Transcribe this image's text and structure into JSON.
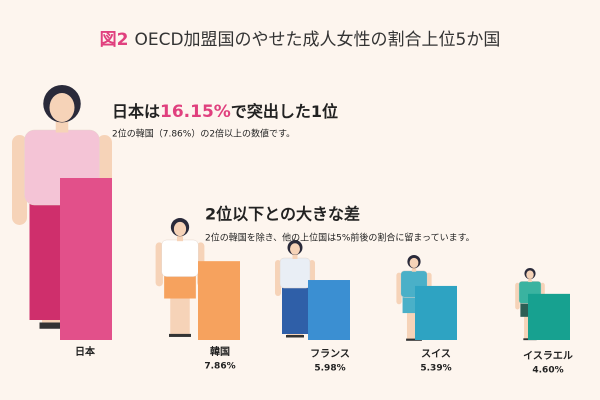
{
  "chart_data": {
    "type": "bar",
    "figure_label": "図2",
    "title": "OECD加盟国のやせた成人女性の割合上位5か国",
    "headline": [
      "日本は",
      "で突出した1位"
    ],
    "headline_note": "2位の韓国（7.86%）の2倍以上の数値です。",
    "subheadline": "2位以下との大きな差",
    "subheadline_note": "2位の韓国を除き、他の上位国は5%前後の割合に留まっています。",
    "categories": [
      "日本",
      "韓国",
      "フランス",
      "スイス",
      "イスラエル"
    ],
    "values": [
      16.15,
      7.86,
      5.98,
      5.39,
      4.6
    ],
    "value_labels": [
      "16.15%",
      "7.86%",
      "5.98%",
      "5.39%",
      "4.60%"
    ],
    "colors": [
      "#e2508a",
      "#f6a25e",
      "#3b8fd2",
      "#2ea3c2",
      "#17a190"
    ]
  }
}
